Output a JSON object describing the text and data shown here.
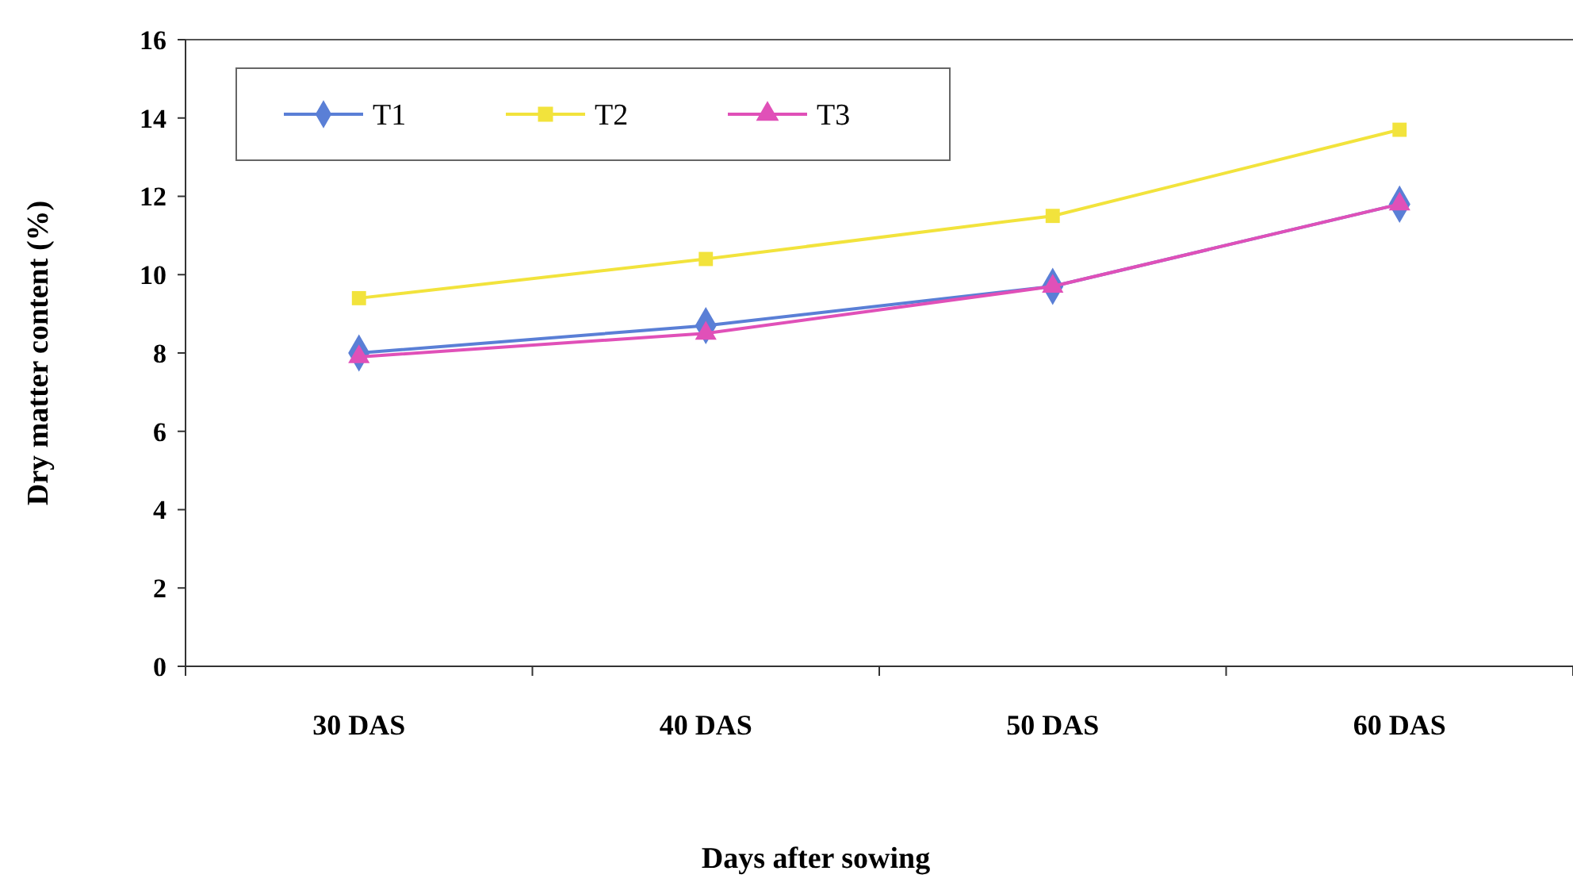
{
  "chart_data": {
    "type": "line",
    "xlabel": "Days after sowing",
    "ylabel": "Dry matter content (%)",
    "categories": [
      "30 DAS",
      "40 DAS",
      "50 DAS",
      "60 DAS"
    ],
    "series": [
      {
        "name": "T1",
        "color": "#5a7fd6",
        "marker": "diamond",
        "values": [
          8.0,
          8.7,
          9.7,
          11.8
        ]
      },
      {
        "name": "T2",
        "color": "#f2e33c",
        "marker": "square",
        "values": [
          9.4,
          10.4,
          11.5,
          13.7
        ]
      },
      {
        "name": "T3",
        "color": "#e050b8",
        "marker": "triangle",
        "values": [
          7.9,
          8.5,
          9.7,
          11.8
        ]
      }
    ],
    "ylim": [
      0,
      16
    ],
    "yticks": [
      0,
      2,
      4,
      6,
      8,
      10,
      12,
      14,
      16
    ],
    "grid": false,
    "legend": "top left"
  }
}
